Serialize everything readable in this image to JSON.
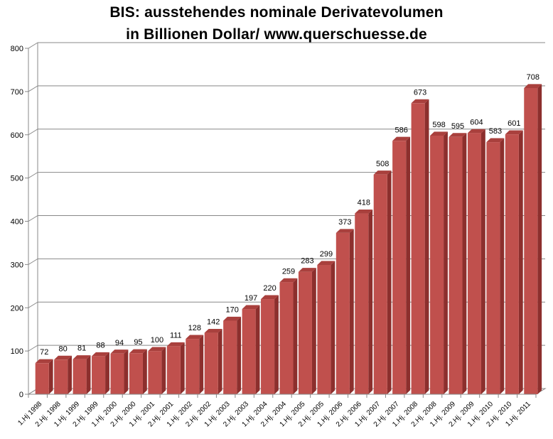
{
  "chart_data": {
    "type": "bar",
    "title_line1": "BIS: ausstehendes nominale Derivatevolumen",
    "title_line2": "in Billionen Dollar/ www.querschuesse.de",
    "categories": [
      "1.Hj 1998",
      "2.Hj. 1998",
      "1.Hj. 1999",
      "2.Hj. 1999",
      "1.Hj. 2000",
      "2.Hj. 2000",
      "1.Hj. 2001",
      "2.Hj. 2001",
      "1.Hj. 2002",
      "2.Hj. 2002",
      "1.Hj. 2003",
      "2.Hj. 2003",
      "1.Hj. 2004",
      "2.Hj. 2004",
      "1.Hj. 2005",
      "2.Hj. 2005",
      "1.Hj. 2006",
      "2.Hj. 2006",
      "1.Hj. 2007",
      "2.Hj. 2007",
      "1.Hj. 2008",
      "2.Hj. 2008",
      "1.Hj. 2009",
      "2.Hj. 2009",
      "1.Hj. 2010",
      "2.Hj. 2010",
      "1.Hj. 2011"
    ],
    "values": [
      72,
      80,
      81,
      88,
      94,
      95,
      100,
      111,
      128,
      142,
      170,
      197,
      220,
      259,
      283,
      299,
      373,
      418,
      508,
      586,
      673,
      598,
      595,
      604,
      583,
      601,
      708
    ],
    "ylim": [
      0,
      800
    ],
    "yticks": [
      0,
      100,
      200,
      300,
      400,
      500,
      600,
      700,
      800
    ],
    "xlabel": "",
    "ylabel": "",
    "grid": true,
    "legend": "none",
    "bar_color": "#c0504d"
  }
}
